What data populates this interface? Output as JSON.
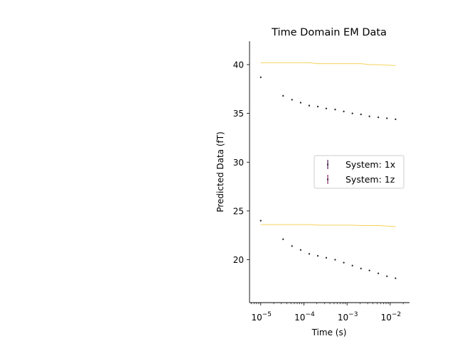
{
  "chart_data": {
    "type": "scatter",
    "title": "Time Domain EM Data",
    "xlabel": "Time (s)",
    "ylabel": "Predicted Data (fT)",
    "x_scale": "log",
    "xlim": [
      5.5e-06,
      0.028
    ],
    "ylim": [
      15.6,
      42.4
    ],
    "x_ticks": [
      1e-05,
      0.0001,
      0.001,
      0.01
    ],
    "x_tick_labels": [
      {
        "base": "10",
        "exp": "−5"
      },
      {
        "base": "10",
        "exp": "−4"
      },
      {
        "base": "10",
        "exp": "−3"
      },
      {
        "base": "10",
        "exp": "−2"
      }
    ],
    "y_ticks": [
      20,
      25,
      30,
      35,
      40
    ],
    "y_tick_labels": [
      "20",
      "25",
      "30",
      "35",
      "40"
    ],
    "grid": false,
    "legend_position": "center-right",
    "series": [
      {
        "name": "System: 1x",
        "color": "#5b1a5e",
        "x": [
          1e-05,
          3.3e-05,
          5.3e-05,
          8.4e-05,
          0.000133,
          0.00021,
          0.00033,
          0.00053,
          0.00084,
          0.00133,
          0.0021,
          0.0033,
          0.0053,
          0.0084,
          0.0133
        ],
        "values": [
          38.7,
          36.8,
          36.4,
          36.1,
          35.8,
          35.7,
          35.5,
          35.4,
          35.2,
          35.0,
          34.9,
          34.7,
          34.6,
          34.5,
          34.4
        ],
        "model": [
          40.2,
          40.2,
          40.2,
          40.2,
          40.2,
          40.1,
          40.1,
          40.1,
          40.1,
          40.1,
          40.1,
          40.0,
          40.0,
          39.95,
          39.9
        ]
      },
      {
        "name": "System: 1z",
        "color": "#8f2a6b",
        "x": [
          1e-05,
          3.3e-05,
          5.3e-05,
          8.4e-05,
          0.000133,
          0.00021,
          0.00033,
          0.00053,
          0.00084,
          0.00133,
          0.0021,
          0.0033,
          0.0053,
          0.0084,
          0.0133
        ],
        "values": [
          24.0,
          22.1,
          21.4,
          21.0,
          20.6,
          20.4,
          20.2,
          20.0,
          19.7,
          19.4,
          19.1,
          18.9,
          18.6,
          18.3,
          18.1
        ],
        "model": [
          23.6,
          23.6,
          23.6,
          23.6,
          23.6,
          23.55,
          23.55,
          23.55,
          23.55,
          23.55,
          23.5,
          23.5,
          23.5,
          23.45,
          23.4
        ]
      }
    ],
    "model_line_color": "#f7d35c",
    "point_color": "#222222"
  }
}
